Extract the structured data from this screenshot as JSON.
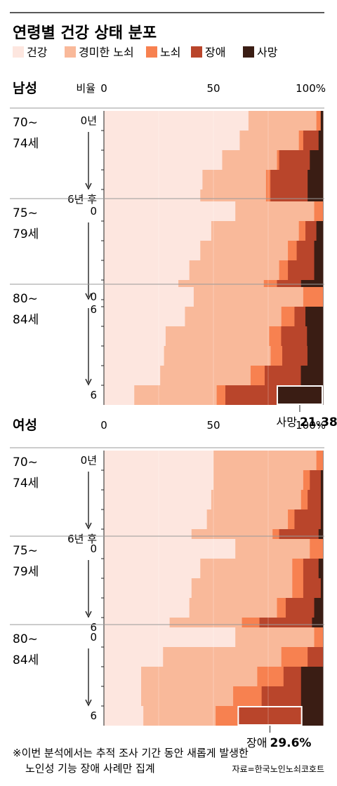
{
  "title": "연령별 건강 상태 분포",
  "colors": {
    "건강": "#fde6df",
    "경미한 노쇠": "#f9b99a",
    "노쇠": "#f78150",
    "장애": "#b9452b",
    "사망": "#3a1d14"
  },
  "axis_caption": "비율",
  "tick_labels": [
    "0",
    "50",
    "100%"
  ],
  "year_labels": {
    "first": [
      "0년",
      "0",
      "0"
    ],
    "last": [
      "6년 후",
      "6",
      "6"
    ]
  },
  "chart_data": {
    "type": "bar",
    "stacked": "horizontal-100",
    "categories": [
      "건강",
      "경미한 노쇠",
      "노쇠",
      "장애",
      "사망"
    ],
    "xlim": [
      0,
      100
    ],
    "grid": true,
    "legend_position": "top",
    "panels": [
      {
        "name": "남성",
        "groups": [
          {
            "label": "70~\n74세",
            "rows": [
              [
                66,
                31,
                2,
                0,
                1
              ],
              [
                62,
                27,
                2,
                7,
                2
              ],
              [
                54,
                25,
                1,
                14,
                6
              ],
              [
                45,
                29,
                2,
                17,
                7
              ],
              [
                44,
                30,
                2,
                17,
                7
              ]
            ]
          },
          {
            "label": "75~\n79세",
            "rows": [
              [
                60,
                36,
                4,
                0,
                0
              ],
              [
                49,
                40,
                3,
                5,
                3
              ],
              [
                44,
                40,
                4,
                8,
                4
              ],
              [
                39,
                41,
                4,
                12,
                4
              ],
              [
                34,
                39,
                6,
                11,
                10
              ],
              [
                34,
                33,
                6,
                16,
                11
              ]
            ]
          },
          {
            "label": "80~\n84세",
            "rows": [
              [
                41,
                50,
                9,
                0,
                0
              ],
              [
                37,
                44,
                6,
                5,
                8
              ],
              [
                31,
                52,
                6,
                13,
                8
              ],
              [
                31,
                55,
                6,
                13,
                8
              ],
              [
                28,
                45,
                7,
                18,
                11
              ],
              [
                14,
                38,
                4,
                23.62,
                21.38
              ]
            ]
          }
        ],
        "highlight": {
          "category": "사망",
          "value": 21.38,
          "label": "사망",
          "value_text": "21.38%"
        }
      },
      {
        "name": "여성",
        "groups": [
          {
            "label": "70~\n74세",
            "rows": [
              [
                50,
                47,
                3,
                0,
                0
              ],
              [
                50,
                41,
                3,
                5,
                1
              ],
              [
                49,
                41,
                3,
                6,
                1
              ],
              [
                47,
                37,
                3,
                12,
                1
              ],
              [
                40,
                37,
                3,
                18,
                2
              ]
            ]
          },
          {
            "label": "75~\n79세",
            "rows": [
              [
                60,
                34,
                6,
                0,
                0
              ],
              [
                44,
                42,
                5,
                7,
                2
              ],
              [
                40,
                46,
                5,
                8,
                1
              ],
              [
                39,
                40,
                4,
                13,
                4
              ],
              [
                30,
                33,
                8,
                24,
                5
              ]
            ]
          },
          {
            "label": "80~\n84세",
            "rows": [
              [
                60,
                36,
                4,
                0,
                0
              ],
              [
                27,
                54,
                12,
                7,
                0
              ],
              [
                17,
                53,
                12,
                8,
                10
              ],
              [
                17,
                42,
                13,
                18,
                10
              ],
              [
                18,
                33,
                10,
                29.6,
                9.4
              ]
            ]
          }
        ],
        "highlight": {
          "category": "장애",
          "value": 29.6,
          "label": "장애",
          "value_text": "29.6%"
        }
      }
    ]
  },
  "note": [
    "※이번 분석에서는 추적 조사 기간 동안 새롭게 발생한",
    "노인성 기능 장애 사례만 집계"
  ],
  "source": "자료=한국노인노쇠코호트"
}
